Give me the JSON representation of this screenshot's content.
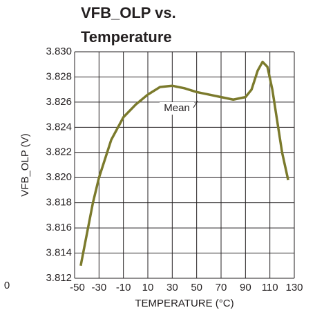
{
  "chart_data": {
    "type": "line",
    "title_lines": [
      "VFB_OLP vs.",
      "Temperature"
    ],
    "x_label": "TEMPERATURE (°C)",
    "y_label": "VFB_OLP (V)",
    "annotations": [
      "Mean",
      "0"
    ],
    "series": [
      {
        "name": "Mean",
        "color": "#7b7a2c",
        "x": [
          -45,
          -40,
          -35,
          -30,
          -20,
          -10,
          0,
          10,
          20,
          30,
          40,
          50,
          60,
          70,
          80,
          90,
          95,
          100,
          104,
          108,
          112,
          116,
          120,
          125
        ],
        "values": [
          3.813,
          3.8155,
          3.818,
          3.82,
          3.823,
          3.8248,
          3.8258,
          3.8266,
          3.8272,
          3.8273,
          3.8271,
          3.8268,
          3.8266,
          3.8264,
          3.8262,
          3.8264,
          3.827,
          3.8285,
          3.8292,
          3.8288,
          3.827,
          3.8245,
          3.822,
          3.8198
        ]
      }
    ],
    "xlim": [
      -50,
      130
    ],
    "xticks": [
      -50,
      -30,
      -10,
      10,
      30,
      50,
      70,
      90,
      110,
      130
    ],
    "ylim": [
      3.812,
      3.83
    ],
    "yticks": [
      3.812,
      3.814,
      3.816,
      3.818,
      {
        "value": 3.82,
        "label": "3.820"
      },
      3.822,
      3.824,
      3.826,
      3.828,
      {
        "value": 3.83,
        "label": "3.830"
      }
    ],
    "grid": true
  }
}
